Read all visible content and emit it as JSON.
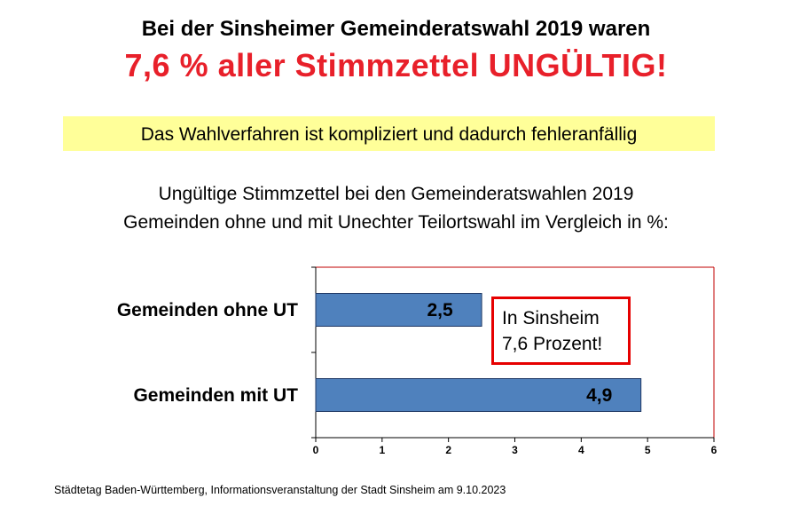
{
  "header": {
    "headline": "Bei der Sinsheimer Gemeinderatswahl 2019 waren",
    "headline_red": "7,6 % aller Stimmzettel UNGÜLTIG!",
    "red_color": "#e8202a"
  },
  "banner": {
    "text": "Das Wahlverfahren ist kompliziert und dadurch fehleranfällig",
    "background": "#ffff99"
  },
  "subtitle": {
    "line1": "Ungültige Stimmzettel bei den Gemeinderatswahlen 2019",
    "line2": "Gemeinden ohne und mit Unechter Teilortswahl im Vergleich in %:"
  },
  "chart_data": {
    "type": "bar",
    "orientation": "horizontal",
    "categories": [
      "Gemeinden ohne UT",
      "Gemeinden mit UT"
    ],
    "values": [
      2.5,
      4.9
    ],
    "value_labels": [
      "2,5",
      "4,9"
    ],
    "xlim": [
      0,
      6
    ],
    "xticks": [
      0,
      1,
      2,
      3,
      4,
      5,
      6
    ],
    "bar_color": "#4f81bd",
    "frame_color": "#c00000",
    "grid": false
  },
  "callout": {
    "line1": "In Sinsheim",
    "line2": "7,6 Prozent!",
    "border_color": "#e60000"
  },
  "footer": {
    "source": "Städtetag Baden-Württemberg, Informationsveranstaltung der Stadt Sinsheim am 9.10.2023"
  }
}
